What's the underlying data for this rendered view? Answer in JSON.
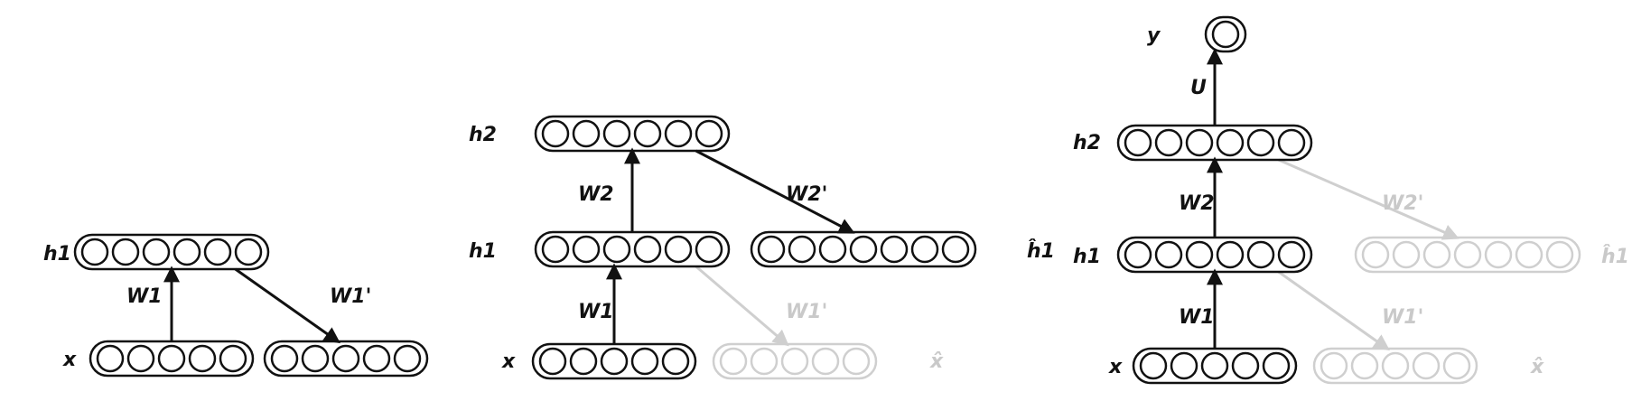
{
  "panels": [
    {
      "id": "panel-1",
      "layers": [
        {
          "id": "x",
          "label": "x",
          "units": 5,
          "style": "dark"
        },
        {
          "id": "xr",
          "label": "",
          "units": 5,
          "style": "dark"
        },
        {
          "id": "h1",
          "label": "h1",
          "units": 6,
          "style": "dark"
        }
      ],
      "weights": [
        {
          "label": "W1",
          "from": "x",
          "to": "h1",
          "style": "dark"
        },
        {
          "label": "W1'",
          "from": "h1",
          "to": "xr",
          "style": "dark"
        }
      ]
    },
    {
      "id": "panel-2",
      "layers": [
        {
          "id": "x",
          "label": "x",
          "units": 5,
          "style": "dark"
        },
        {
          "id": "xr",
          "label": "x̂",
          "units": 5,
          "style": "faint"
        },
        {
          "id": "h1",
          "label": "h1",
          "units": 6,
          "style": "dark"
        },
        {
          "id": "h1r",
          "label": "ĥ1",
          "units": 7,
          "style": "dark"
        },
        {
          "id": "h2",
          "label": "h2",
          "units": 6,
          "style": "dark"
        }
      ],
      "weights": [
        {
          "label": "W1",
          "from": "x",
          "to": "h1",
          "style": "dark"
        },
        {
          "label": "W1'",
          "from": "h1",
          "to": "xr",
          "style": "faint"
        },
        {
          "label": "W2",
          "from": "h1",
          "to": "h2",
          "style": "dark"
        },
        {
          "label": "W2'",
          "from": "h2",
          "to": "h1r",
          "style": "dark"
        }
      ]
    },
    {
      "id": "panel-3",
      "layers": [
        {
          "id": "x",
          "label": "x",
          "units": 5,
          "style": "dark"
        },
        {
          "id": "xr",
          "label": "x̂",
          "units": 5,
          "style": "faint"
        },
        {
          "id": "h1",
          "label": "h1",
          "units": 6,
          "style": "dark"
        },
        {
          "id": "h1r",
          "label": "ĥ1",
          "units": 7,
          "style": "faint"
        },
        {
          "id": "h2",
          "label": "h2",
          "units": 6,
          "style": "dark"
        },
        {
          "id": "y",
          "label": "y",
          "units": 1,
          "style": "dark"
        }
      ],
      "weights": [
        {
          "label": "W1",
          "from": "x",
          "to": "h1",
          "style": "dark"
        },
        {
          "label": "W1'",
          "from": "h1",
          "to": "xr",
          "style": "faint"
        },
        {
          "label": "W2",
          "from": "h1",
          "to": "h2",
          "style": "dark"
        },
        {
          "label": "W2'",
          "from": "h2",
          "to": "h1r",
          "style": "faint"
        },
        {
          "label": "U",
          "from": "h2",
          "to": "y",
          "style": "dark"
        }
      ]
    }
  ]
}
